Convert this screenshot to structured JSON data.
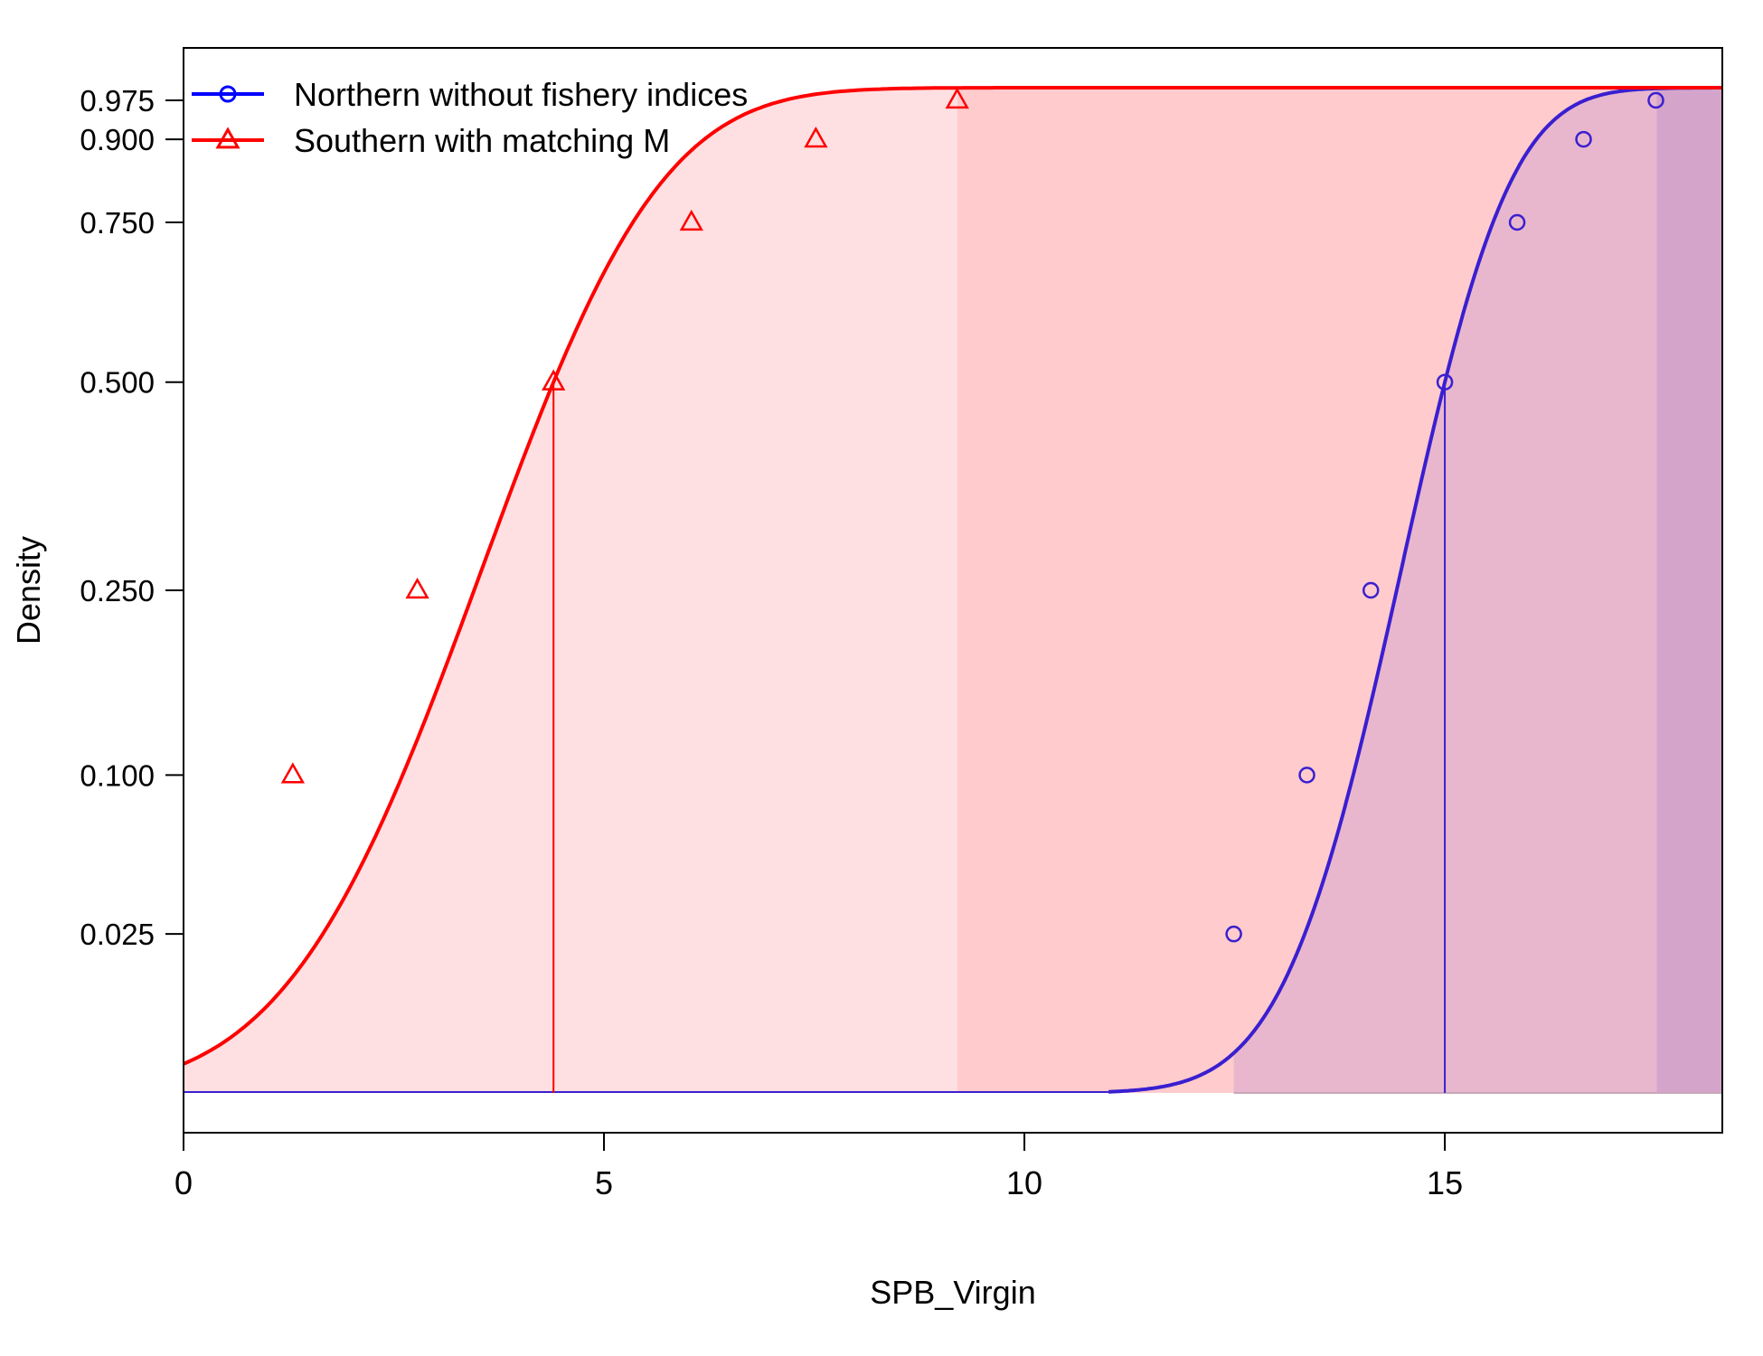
{
  "chart_data": {
    "type": "line",
    "title": "",
    "xlabel": "SPB_Virgin",
    "ylabel": "Density",
    "xlim": [
      0,
      18.3
    ],
    "ylim": [
      0,
      1
    ],
    "x_ticks": [
      "0",
      "5",
      "10",
      "15"
    ],
    "x_tick_values": [
      0,
      5,
      10,
      15
    ],
    "y_ticks": [
      "0.025",
      "0.100",
      "0.250",
      "0.500",
      "0.750",
      "0.900",
      "0.975"
    ],
    "y_tick_values": [
      0.025,
      0.1,
      0.25,
      0.5,
      0.75,
      0.9,
      0.975
    ],
    "legend_position": "top-left",
    "series": [
      {
        "name": "Northern without fishery indices",
        "color": "#0000ff",
        "line_color": "#3a1fd0",
        "marker": "circle",
        "median": 15.0,
        "scale": 0.85,
        "x_start": 11.0,
        "median_line": [
          15.0,
          0.5
        ],
        "interval_fills": [
          {
            "x_from": 12.49,
            "x_to": 17.52,
            "color": "#e9b7cd"
          },
          {
            "x_from": 17.52,
            "x_to": 18.3,
            "color": "#d4a4cb"
          }
        ],
        "points": [
          [
            12.49,
            0.025
          ],
          [
            13.36,
            0.1
          ],
          [
            14.12,
            0.25
          ],
          [
            15.0,
            0.5
          ],
          [
            15.86,
            0.75
          ],
          [
            16.65,
            0.9
          ],
          [
            17.51,
            0.975
          ]
        ]
      },
      {
        "name": "Southern with matching M",
        "color": "#ff0000",
        "line_color": "#ff0000",
        "marker": "triangle",
        "median": 4.4,
        "scale": 1.4,
        "x_start": 0,
        "median_line": [
          4.4,
          0.5
        ],
        "interval_fills": [
          {
            "x_from": 0,
            "x_to": 9.2,
            "color": "#ffe0e2"
          },
          {
            "x_from": 9.2,
            "x_to": 18.3,
            "color": "#ffcbcd"
          }
        ],
        "points": [
          [
            1.3,
            0.1
          ],
          [
            2.78,
            0.25
          ],
          [
            4.4,
            0.5
          ],
          [
            6.04,
            0.75
          ],
          [
            7.52,
            0.9
          ],
          [
            9.2,
            0.975
          ]
        ]
      }
    ]
  }
}
